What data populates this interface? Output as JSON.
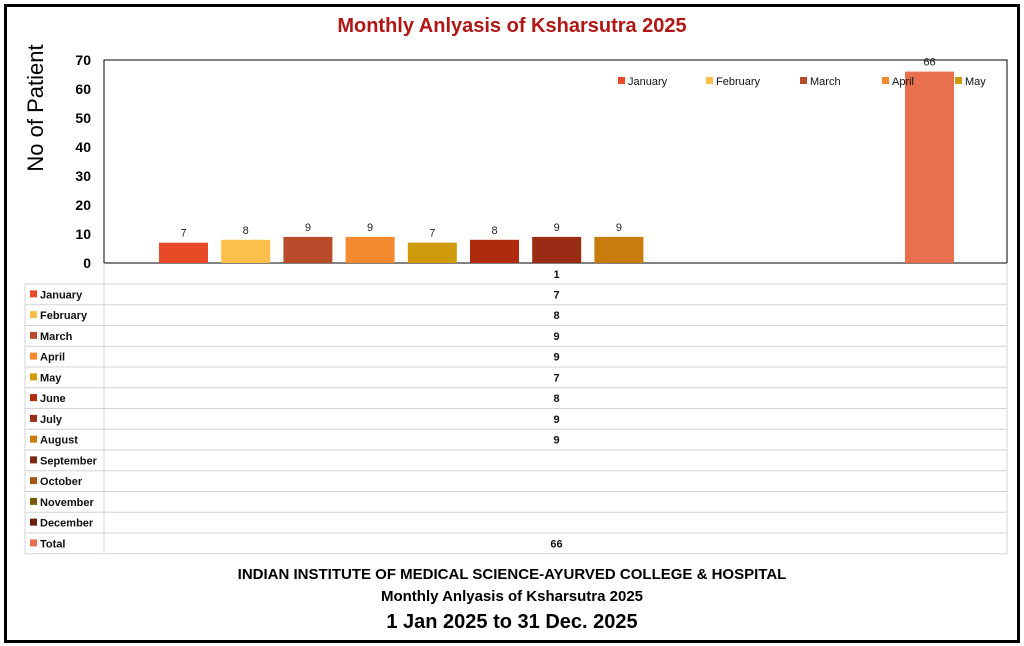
{
  "chart_data": {
    "type": "bar",
    "title": "Monthly Anlyasis of Ksharsutra  2025",
    "ylabel": "No of Patient",
    "xlabel": "",
    "category": "1",
    "ylim": [
      0,
      70
    ],
    "yticks": [
      0,
      10,
      20,
      30,
      40,
      50,
      60,
      70
    ],
    "grid": false,
    "legend_position": "top-right",
    "legend_visible": [
      "January",
      "February",
      "March",
      "April",
      "May"
    ],
    "series": [
      {
        "name": "January",
        "value": 7,
        "color": "#e84a27"
      },
      {
        "name": "February",
        "value": 8,
        "color": "#fbbf4a"
      },
      {
        "name": "March",
        "value": 9,
        "color": "#b84b2a"
      },
      {
        "name": "April",
        "value": 9,
        "color": "#f5892d"
      },
      {
        "name": "May",
        "value": 7,
        "color": "#cf9a0c"
      },
      {
        "name": "June",
        "value": 8,
        "color": "#b02a0e"
      },
      {
        "name": "July",
        "value": 9,
        "color": "#9a2c16"
      },
      {
        "name": "August",
        "value": 9,
        "color": "#c77c0c"
      },
      {
        "name": "September",
        "value": null,
        "color": "#7a2a14"
      },
      {
        "name": "October",
        "value": null,
        "color": "#a6580f"
      },
      {
        "name": "November",
        "value": null,
        "color": "#7a5a0a"
      },
      {
        "name": "December",
        "value": null,
        "color": "#6a1e0c"
      },
      {
        "name": "Total",
        "value": 66,
        "color": "#e9704f"
      }
    ]
  },
  "footer": {
    "institute": "INDIAN INSTITUTE OF MEDICAL SCIENCE-AYURVED COLLEGE & HOSPITAL",
    "subtitle": "Monthly Anlyasis of Ksharsutra  2025",
    "period": "1 Jan 2025 to 31 Dec. 2025"
  }
}
